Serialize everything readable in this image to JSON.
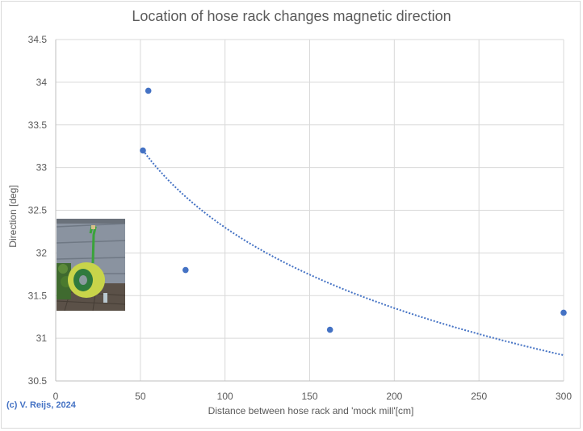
{
  "chart_data": {
    "type": "scatter",
    "title": "Location of hose rack changes magnetic direction",
    "xlabel": "Distance between  hose rack and 'mock mill'[cm]",
    "ylabel": "Direction [deg]",
    "xlim": [
      0,
      300
    ],
    "ylim": [
      30.5,
      34.5
    ],
    "x_ticks": [
      0,
      50,
      100,
      150,
      200,
      250,
      300
    ],
    "y_ticks": [
      30.5,
      31,
      31.5,
      32,
      32.5,
      33,
      33.5,
      34,
      34.5
    ],
    "grid": true,
    "legend": null,
    "series": [
      {
        "name": "Direction",
        "marker": "circle",
        "color": "#4472c4",
        "points": [
          {
            "x": 51.5,
            "y": 33.2
          },
          {
            "x": 54.7,
            "y": 33.9
          },
          {
            "x": 76.7,
            "y": 31.8
          },
          {
            "x": 162,
            "y": 31.1
          },
          {
            "x": 300,
            "y": 31.3
          }
        ]
      }
    ],
    "trendline": {
      "type": "logarithmic",
      "style": "dotted",
      "color": "#4472c4",
      "x_range": [
        51.5,
        300
      ],
      "equation_estimate": {
        "a": -1.362,
        "b": 38.57
      },
      "sample_points": [
        {
          "x": 51.5,
          "y": 33.2
        },
        {
          "x": 100,
          "y": 32.3
        },
        {
          "x": 150,
          "y": 31.75
        },
        {
          "x": 200,
          "y": 31.35
        },
        {
          "x": 250,
          "y": 31.05
        },
        {
          "x": 300,
          "y": 30.8
        }
      ]
    },
    "annotations": [
      {
        "text": "(c) V. Reijs, 2024",
        "position": "bottom-left",
        "color": "#4472c4"
      },
      {
        "text": "photo of hose rack",
        "type": "inset-image",
        "position": "left, y 31.3–32.4"
      }
    ]
  },
  "labels": {
    "title": "Location of hose rack changes magnetic direction",
    "xlabel": "Distance between  hose rack and 'mock mill'[cm]",
    "ylabel": "Direction [deg]",
    "copyright": "(c) V. Reijs, 2024"
  },
  "colors": {
    "series": "#4472c4",
    "grid": "#d9d9d9",
    "text": "#595959"
  }
}
